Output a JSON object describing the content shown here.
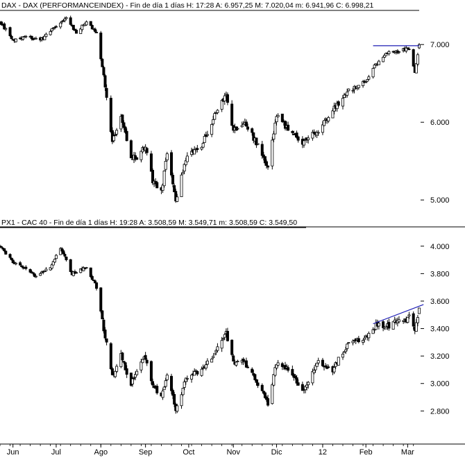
{
  "chart_data": [
    {
      "type": "candlestick",
      "title": "DAX - DAX (PERFORMANCEINDEX) - Fin de día 1 días  H: 17:28  A: 6.957,25  M: 7.020,04  m: 6.941,96  C: 6.998,21",
      "y_scale": "linear",
      "ylim": [
        4850,
        7350
      ],
      "y_ticks": [
        5000,
        6000,
        7000
      ],
      "y_tick_labels": [
        "5.000",
        "6.000",
        "7.000"
      ],
      "grid": false,
      "x_range_dates": [
        "2011-05-23",
        "2012-03-09"
      ],
      "anchors": [
        [
          "2011-05-23",
          7300
        ],
        [
          "2011-06-01",
          7050
        ],
        [
          "2011-06-10",
          7100
        ],
        [
          "2011-06-20",
          7050
        ],
        [
          "2011-07-01",
          7250
        ],
        [
          "2011-07-08",
          7350
        ],
        [
          "2011-07-15",
          7150
        ],
        [
          "2011-07-22",
          7300
        ],
        [
          "2011-07-29",
          7150
        ],
        [
          "2011-08-03",
          6600
        ],
        [
          "2011-08-09",
          5750
        ],
        [
          "2011-08-15",
          6100
        ],
        [
          "2011-08-22",
          5550
        ],
        [
          "2011-08-26",
          5550
        ],
        [
          "2011-09-01",
          5700
        ],
        [
          "2011-09-06",
          5250
        ],
        [
          "2011-09-12",
          5100
        ],
        [
          "2011-09-16",
          5600
        ],
        [
          "2011-09-22",
          5000
        ],
        [
          "2011-09-30",
          5600
        ],
        [
          "2011-10-10",
          5700
        ],
        [
          "2011-10-18",
          6050
        ],
        [
          "2011-10-27",
          6350
        ],
        [
          "2011-11-01",
          5900
        ],
        [
          "2011-11-09",
          6000
        ],
        [
          "2011-11-18",
          5700
        ],
        [
          "2011-11-25",
          5400
        ],
        [
          "2011-12-01",
          6100
        ],
        [
          "2011-12-09",
          5900
        ],
        [
          "2011-12-19",
          5750
        ],
        [
          "2011-12-30",
          5900
        ],
        [
          "2012-01-09",
          6150
        ],
        [
          "2012-01-20",
          6400
        ],
        [
          "2012-01-31",
          6500
        ],
        [
          "2012-02-08",
          6750
        ],
        [
          "2012-02-17",
          6900
        ],
        [
          "2012-02-24",
          6900
        ],
        [
          "2012-02-29",
          6950
        ],
        [
          "2012-03-02",
          6950
        ],
        [
          "2012-03-06",
          6650
        ],
        [
          "2012-03-09",
          6998
        ]
      ],
      "last_bar": {
        "open": 6957.25,
        "high": 7020.04,
        "low": 6941.96,
        "close": 6998.21
      },
      "trendline": {
        "from": [
          "2012-02-06",
          6985
        ],
        "to": [
          "2012-03-09",
          6985
        ],
        "color": "#1c1cb4"
      }
    },
    {
      "type": "candlestick",
      "title": "PX1 - CAC 40 - Fin de día 1 días  H: 19:28  A: 3.508,59  M: 3.549,71  m: 3.508,59  C: 3.549,50",
      "y_scale": "linear",
      "ylim": [
        2650,
        4100
      ],
      "y_ticks": [
        2800,
        3000,
        3200,
        3400,
        3600,
        3800,
        4000
      ],
      "y_tick_labels": [
        "2.800",
        "3.000",
        "3.200",
        "3.400",
        "3.600",
        "3.800",
        "4.000"
      ],
      "grid": false,
      "x_range_dates": [
        "2011-05-23",
        "2012-03-09"
      ],
      "anchors": [
        [
          "2011-05-23",
          4000
        ],
        [
          "2011-06-01",
          3880
        ],
        [
          "2011-06-10",
          3830
        ],
        [
          "2011-06-17",
          3780
        ],
        [
          "2011-06-27",
          3850
        ],
        [
          "2011-07-04",
          3990
        ],
        [
          "2011-07-12",
          3800
        ],
        [
          "2011-07-22",
          3850
        ],
        [
          "2011-07-29",
          3700
        ],
        [
          "2011-08-03",
          3400
        ],
        [
          "2011-08-09",
          3050
        ],
        [
          "2011-08-15",
          3200
        ],
        [
          "2011-08-22",
          3000
        ],
        [
          "2011-08-31",
          3200
        ],
        [
          "2011-09-06",
          3000
        ],
        [
          "2011-09-12",
          2900
        ],
        [
          "2011-09-16",
          3050
        ],
        [
          "2011-09-22",
          2820
        ],
        [
          "2011-09-30",
          3050
        ],
        [
          "2011-10-10",
          3100
        ],
        [
          "2011-10-18",
          3200
        ],
        [
          "2011-10-27",
          3370
        ],
        [
          "2011-11-01",
          3150
        ],
        [
          "2011-11-09",
          3150
        ],
        [
          "2011-11-18",
          3000
        ],
        [
          "2011-11-25",
          2850
        ],
        [
          "2011-12-01",
          3150
        ],
        [
          "2011-12-09",
          3100
        ],
        [
          "2011-12-19",
          2950
        ],
        [
          "2011-12-30",
          3150
        ],
        [
          "2012-01-09",
          3100
        ],
        [
          "2012-01-20",
          3300
        ],
        [
          "2012-01-31",
          3320
        ],
        [
          "2012-02-08",
          3420
        ],
        [
          "2012-02-17",
          3420
        ],
        [
          "2012-02-24",
          3470
        ],
        [
          "2012-02-29",
          3460
        ],
        [
          "2012-03-02",
          3500
        ],
        [
          "2012-03-06",
          3390
        ],
        [
          "2012-03-09",
          3549.5
        ]
      ],
      "last_bar": {
        "open": 3508.59,
        "high": 3549.71,
        "low": 3508.59,
        "close": 3549.5
      },
      "trendline": {
        "from": [
          "2012-02-06",
          3435
        ],
        "to": [
          "2012-03-12",
          3575
        ],
        "color": "#1c1cb4"
      }
    }
  ],
  "x_axis": {
    "labels": [
      {
        "text": "Jun",
        "date": "2011-06-01"
      },
      {
        "text": "Jul",
        "date": "2011-07-01"
      },
      {
        "text": "Ago",
        "date": "2011-08-01"
      },
      {
        "text": "Sep",
        "date": "2011-09-01"
      },
      {
        "text": "Oct",
        "date": "2011-10-01"
      },
      {
        "text": "Nov",
        "date": "2011-11-01"
      },
      {
        "text": "Dic",
        "date": "2011-12-01"
      },
      {
        "text": "12",
        "date": "2012-01-02"
      },
      {
        "text": "Feb",
        "date": "2012-02-01"
      },
      {
        "text": "Mar",
        "date": "2012-03-01"
      }
    ]
  },
  "colors": {
    "candle": "#000000",
    "up_fill": "#ffffff",
    "down_fill": "#000000",
    "trendline": "#1c1cb4",
    "divider": "#000000",
    "text": "#000000"
  }
}
